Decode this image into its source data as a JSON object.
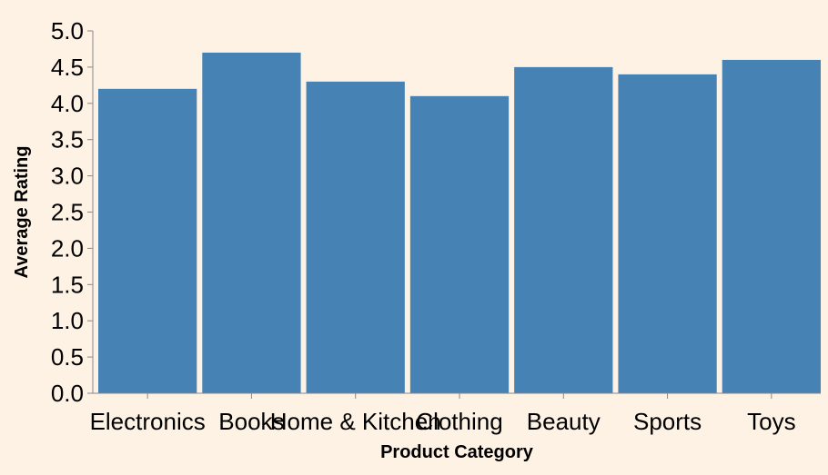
{
  "chart_data": {
    "type": "bar",
    "categories": [
      "Electronics",
      "Books",
      "Home & Kitchen",
      "Clothing",
      "Beauty",
      "Sports",
      "Toys"
    ],
    "values": [
      4.2,
      4.7,
      4.3,
      4.1,
      4.5,
      4.4,
      4.6
    ],
    "xlabel": "Product Category",
    "ylabel": "Average Rating",
    "ylim": [
      0,
      5
    ],
    "yticks": [
      "0.0",
      "0.5",
      "1.0",
      "1.5",
      "2.0",
      "2.5",
      "3.0",
      "3.5",
      "4.0",
      "4.5",
      "5.0"
    ],
    "grid": false,
    "legend": "none",
    "colors": {
      "bar": "#4682b4",
      "axis": "#888888",
      "background": "#fdf2e4"
    }
  }
}
